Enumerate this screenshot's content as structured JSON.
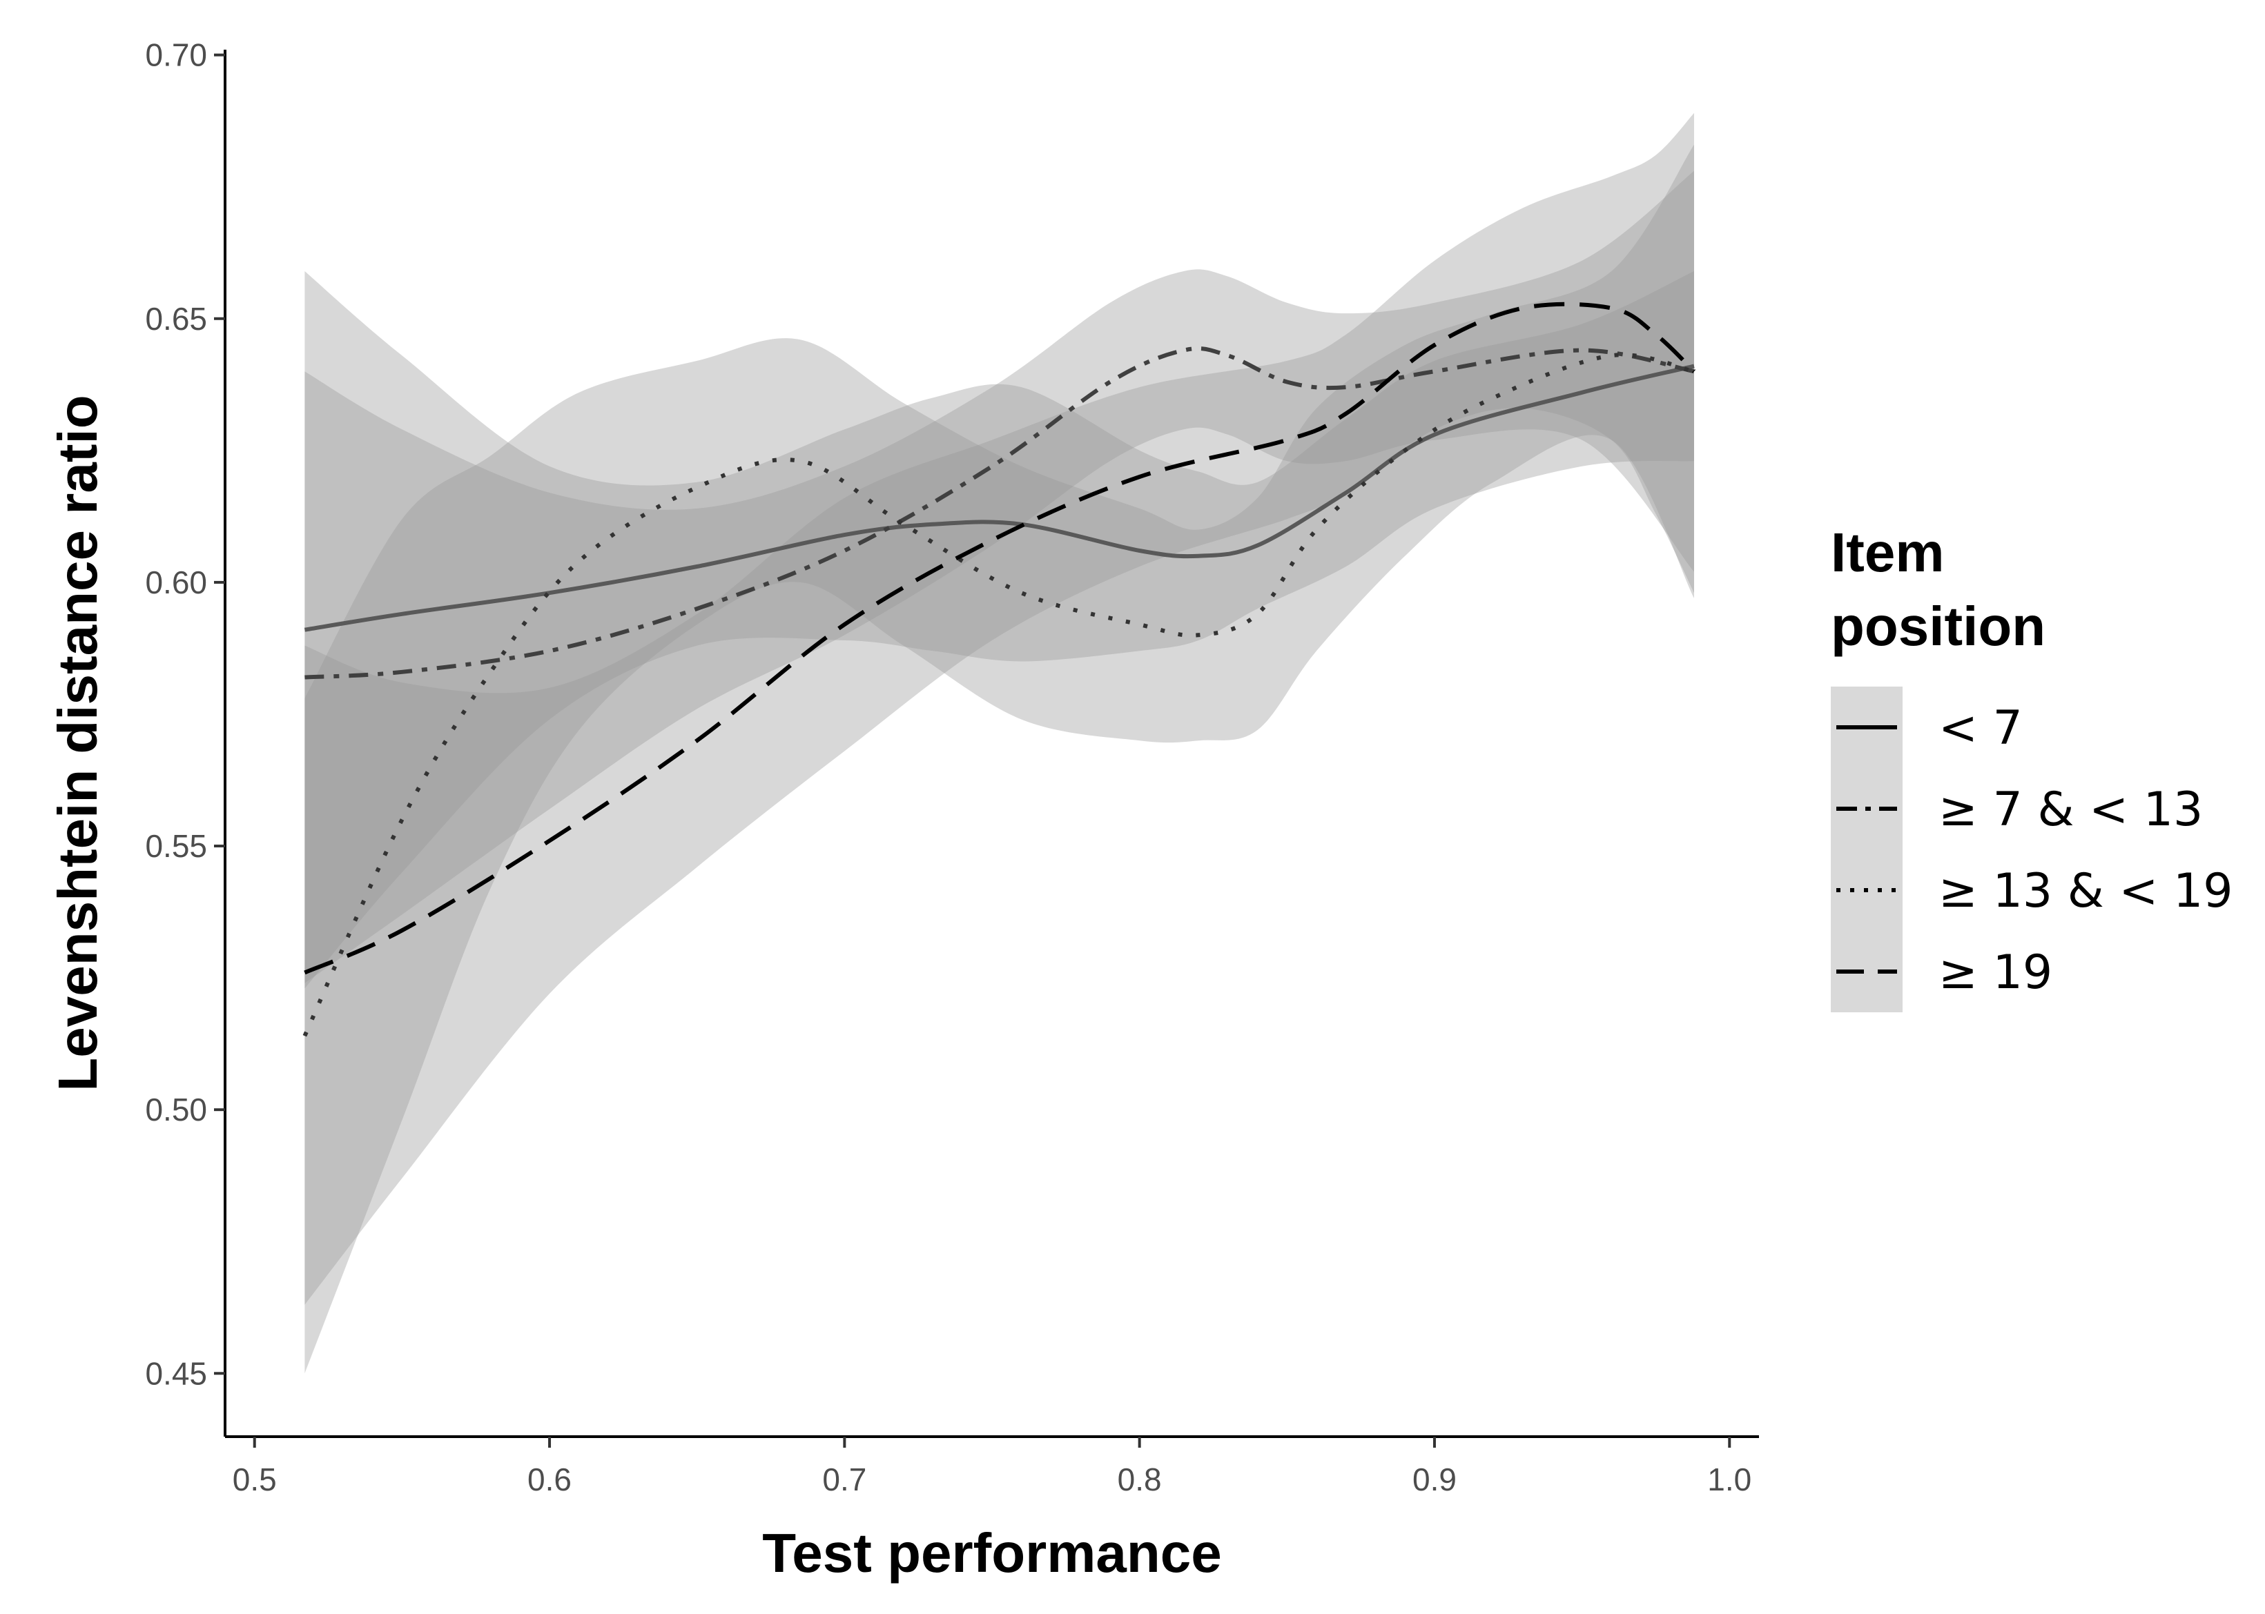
{
  "chart_data": {
    "type": "line",
    "title": "",
    "xlabel": "Test performance",
    "ylabel": "Levenshtein distance ratio",
    "xlim": [
      0.49,
      1.01
    ],
    "ylim": [
      0.438,
      0.701
    ],
    "x_ticks": [
      0.5,
      0.6,
      0.7,
      0.8,
      0.9,
      1.0
    ],
    "x_tick_labels": [
      "0.5",
      "0.6",
      "0.7",
      "0.8",
      "0.9",
      "1.0"
    ],
    "y_ticks": [
      0.45,
      0.5,
      0.55,
      0.6,
      0.65,
      0.7
    ],
    "y_tick_labels": [
      "0.45",
      "0.50",
      "0.55",
      "0.60",
      "0.65",
      "0.70"
    ],
    "grid": false,
    "legend": {
      "title_lines": [
        "Item",
        "position"
      ],
      "placement": "right"
    },
    "series": [
      {
        "name": "< 7",
        "linetype": "solid",
        "color": "#595959",
        "x": [
          0.517,
          0.55,
          0.6,
          0.65,
          0.7,
          0.73,
          0.76,
          0.8,
          0.82,
          0.84,
          0.87,
          0.9,
          0.95,
          0.988
        ],
        "y": [
          0.591,
          0.594,
          0.598,
          0.603,
          0.609,
          0.611,
          0.611,
          0.606,
          0.605,
          0.607,
          0.617,
          0.628,
          0.636,
          0.641
        ],
        "ci_lower": [
          0.523,
          0.545,
          0.574,
          0.588,
          0.589,
          0.587,
          0.585,
          0.587,
          0.589,
          0.595,
          0.603,
          0.614,
          0.622,
          0.623
        ],
        "ci_upper": [
          0.659,
          0.643,
          0.622,
          0.619,
          0.629,
          0.635,
          0.637,
          0.625,
          0.621,
          0.619,
          0.631,
          0.642,
          0.649,
          0.659
        ]
      },
      {
        "name": "≥ 7 & < 13",
        "linetype": "dashdot",
        "color": "#404040",
        "x": [
          0.517,
          0.55,
          0.6,
          0.65,
          0.7,
          0.75,
          0.79,
          0.815,
          0.83,
          0.85,
          0.87,
          0.9,
          0.95,
          0.988
        ],
        "y": [
          0.582,
          0.583,
          0.587,
          0.595,
          0.606,
          0.622,
          0.638,
          0.644,
          0.643,
          0.638,
          0.637,
          0.64,
          0.644,
          0.64
        ],
        "ci_lower": [
          0.524,
          0.537,
          0.557,
          0.576,
          0.59,
          0.607,
          0.623,
          0.629,
          0.628,
          0.623,
          0.623,
          0.627,
          0.627,
          0.602
        ],
        "ci_upper": [
          0.64,
          0.629,
          0.617,
          0.614,
          0.622,
          0.637,
          0.653,
          0.659,
          0.658,
          0.653,
          0.651,
          0.653,
          0.661,
          0.678
        ]
      },
      {
        "name": "≥ 13 & < 19",
        "linetype": "dotted",
        "color": "#333333",
        "x": [
          0.517,
          0.55,
          0.58,
          0.61,
          0.65,
          0.685,
          0.72,
          0.76,
          0.8,
          0.82,
          0.84,
          0.86,
          0.89,
          0.92,
          0.96,
          0.988
        ],
        "y": [
          0.514,
          0.555,
          0.583,
          0.604,
          0.618,
          0.623,
          0.611,
          0.598,
          0.592,
          0.59,
          0.594,
          0.61,
          0.625,
          0.635,
          0.643,
          0.64
        ],
        "ci_lower": [
          0.45,
          0.498,
          0.542,
          0.572,
          0.592,
          0.6,
          0.588,
          0.574,
          0.57,
          0.57,
          0.572,
          0.587,
          0.605,
          0.619,
          0.627,
          0.597
        ],
        "ci_upper": [
          0.578,
          0.612,
          0.624,
          0.636,
          0.642,
          0.646,
          0.634,
          0.622,
          0.614,
          0.61,
          0.616,
          0.633,
          0.645,
          0.651,
          0.659,
          0.683
        ]
      },
      {
        "name": "≥ 19",
        "linetype": "longdash",
        "color": "#000000",
        "x": [
          0.517,
          0.55,
          0.6,
          0.65,
          0.7,
          0.75,
          0.8,
          0.85,
          0.87,
          0.9,
          0.93,
          0.96,
          0.975,
          0.988
        ],
        "y": [
          0.526,
          0.534,
          0.551,
          0.57,
          0.592,
          0.608,
          0.62,
          0.627,
          0.632,
          0.645,
          0.652,
          0.652,
          0.647,
          0.64
        ],
        "ci_lower": [
          0.463,
          0.487,
          0.522,
          0.546,
          0.568,
          0.589,
          0.603,
          0.612,
          0.617,
          0.629,
          0.633,
          0.627,
          0.613,
          0.598
        ],
        "ci_upper": [
          0.588,
          0.581,
          0.58,
          0.594,
          0.616,
          0.627,
          0.637,
          0.642,
          0.647,
          0.661,
          0.671,
          0.677,
          0.681,
          0.689
        ]
      }
    ]
  }
}
